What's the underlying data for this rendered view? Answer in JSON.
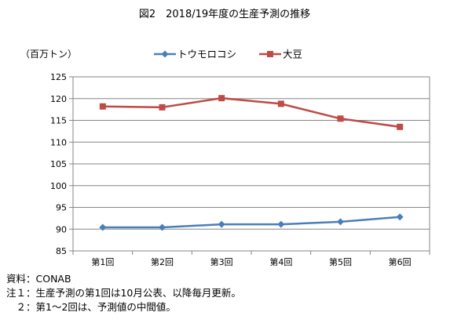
{
  "chart_data": {
    "type": "line",
    "title": "図2　2018/19年度の生産予測の推移",
    "ylabel": "（百万トン）",
    "xlabel": "",
    "categories": [
      "第1回",
      "第2回",
      "第3回",
      "第4回",
      "第5回",
      "第6回"
    ],
    "ylim": [
      85,
      125
    ],
    "yticks": [
      85,
      90,
      95,
      100,
      105,
      110,
      115,
      120,
      125
    ],
    "grid": true,
    "legend_position": "top-center",
    "series": [
      {
        "name": "トウモロコシ",
        "color": "#4a7ebb",
        "marker": "diamond",
        "values": [
          90.4,
          90.4,
          91.1,
          91.1,
          91.7,
          92.8
        ]
      },
      {
        "name": "大豆",
        "color": "#be4b48",
        "marker": "square",
        "values": [
          118.2,
          118.0,
          120.1,
          118.8,
          115.4,
          113.5
        ]
      }
    ]
  },
  "notes": {
    "source": "資料：CONAB",
    "note1": "注１：生産予測の第1回は10月公表、以降毎月更新。",
    "note2": "　２：第1～2回は、予測値の中間値。"
  }
}
